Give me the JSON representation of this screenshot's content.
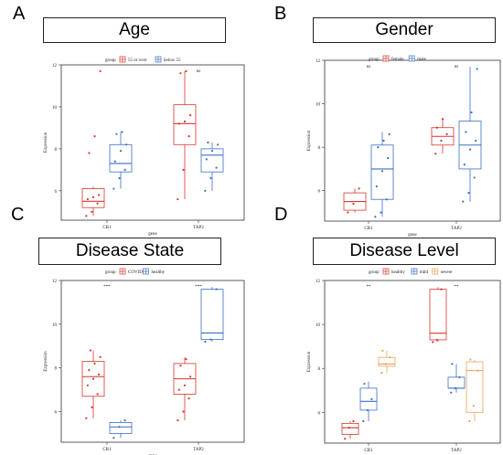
{
  "panels": [
    {
      "letter": "A",
      "title": "Age"
    },
    {
      "letter": "B",
      "title": "Gender"
    },
    {
      "letter": "C",
      "title": "Disease State"
    },
    {
      "letter": "D",
      "title": "Disease Level"
    }
  ],
  "chart_data": [
    {
      "type": "box",
      "title": "Age",
      "xlabel": "gene",
      "ylabel": "Expression",
      "ylim": [
        4.6,
        12
      ],
      "yticks": [
        6,
        8,
        10,
        12
      ],
      "legend_title": "group",
      "legend_position": "top",
      "categories": [
        "CR1",
        "TAP2"
      ],
      "significance": {
        "CR1": "",
        "TAP2": "ns"
      },
      "series": [
        {
          "name": "55 or over",
          "color": "#d7372d",
          "stats": [
            {
              "min": 4.8,
              "q1": 5.2,
              "median": 5.5,
              "q3": 6.1,
              "max": 6.2
            },
            {
              "min": 5.6,
              "q1": 8.2,
              "median": 9.2,
              "q3": 10.1,
              "max": 11.7
            }
          ],
          "points": [
            [
              4.8,
              5.0,
              5.4,
              5.6,
              5.7,
              5.8,
              7.8,
              8.6,
              11.7
            ],
            [
              5.6,
              7.0,
              8.6,
              9.2,
              9.3,
              9.6,
              11.6,
              11.7
            ]
          ]
        },
        {
          "name": "below 55",
          "color": "#3a6fc4",
          "stats": [
            {
              "min": 6.1,
              "q1": 6.9,
              "median": 7.3,
              "q3": 8.2,
              "max": 8.8
            },
            {
              "min": 6.0,
              "q1": 6.9,
              "median": 7.7,
              "q3": 8.0,
              "max": 8.3
            }
          ],
          "points": [
            [
              6.1,
              6.6,
              7.0,
              7.4,
              7.9,
              8.2,
              8.7,
              8.8
            ],
            [
              6.0,
              6.6,
              7.1,
              7.5,
              7.9,
              8.2,
              8.3
            ]
          ]
        }
      ]
    },
    {
      "type": "box",
      "title": "Gender",
      "xlabel": "gene",
      "ylabel": "Expression",
      "ylim": [
        4.6,
        12
      ],
      "yticks": [
        6,
        8,
        10,
        12
      ],
      "legend_title": "group",
      "legend_position": "top",
      "categories": [
        "CR1",
        "TAP2"
      ],
      "significance": {
        "CR1": "ns",
        "TAP2": "ns"
      },
      "series": [
        {
          "name": "female",
          "color": "#d7372d",
          "stats": [
            {
              "min": 5.0,
              "q1": 5.1,
              "median": 5.5,
              "q3": 5.9,
              "max": 6.1
            },
            {
              "min": 7.7,
              "q1": 8.1,
              "median": 8.5,
              "q3": 8.9,
              "max": 9.3
            }
          ],
          "points": [
            [
              5.0,
              5.4,
              6.1
            ],
            [
              7.7,
              8.3,
              8.6,
              8.9,
              9.3
            ]
          ]
        },
        {
          "name": "male",
          "color": "#3a6fc4",
          "stats": [
            {
              "min": 4.8,
              "q1": 5.6,
              "median": 7.0,
              "q3": 8.1,
              "max": 8.7
            },
            {
              "min": 5.5,
              "q1": 7.0,
              "median": 8.1,
              "q3": 9.2,
              "max": 11.7
            }
          ],
          "points": [
            [
              4.8,
              5.0,
              5.6,
              6.2,
              6.9,
              7.5,
              8.0,
              8.3,
              8.6
            ],
            [
              5.5,
              5.9,
              6.6,
              7.2,
              7.9,
              8.3,
              8.7,
              9.6,
              11.6
            ]
          ]
        }
      ]
    },
    {
      "type": "box",
      "title": "Disease State",
      "xlabel": "gene",
      "ylabel": "Expression",
      "ylim": [
        4.6,
        12
      ],
      "yticks": [
        6,
        8,
        10,
        12
      ],
      "legend_title": "group",
      "legend_position": "top",
      "categories": [
        "CR1",
        "TAP2"
      ],
      "significance": {
        "CR1": "***",
        "TAP2": "***"
      },
      "series": [
        {
          "name": "COVID",
          "color": "#d7372d",
          "stats": [
            {
              "min": 5.7,
              "q1": 6.7,
              "median": 7.6,
              "q3": 8.3,
              "max": 8.8
            },
            {
              "min": 5.6,
              "q1": 6.8,
              "median": 7.5,
              "q3": 8.2,
              "max": 8.5
            }
          ],
          "points": [
            [
              5.7,
              6.2,
              6.8,
              7.2,
              7.5,
              7.7,
              7.9,
              8.2,
              8.5,
              8.8
            ],
            [
              5.6,
              6.0,
              6.6,
              7.0,
              7.2,
              7.6,
              8.1,
              8.4
            ]
          ]
        },
        {
          "name": "healthy",
          "color": "#3a6fc4",
          "stats": [
            {
              "min": 4.8,
              "q1": 5.0,
              "median": 5.3,
              "q3": 5.5,
              "max": 5.6
            },
            {
              "min": 9.2,
              "q1": 9.3,
              "median": 9.6,
              "q3": 11.6,
              "max": 11.7
            }
          ],
          "points": [
            [
              4.8,
              5.3,
              5.6
            ],
            [
              9.2,
              9.3,
              11.6
            ]
          ]
        }
      ]
    },
    {
      "type": "box",
      "title": "Disease Level",
      "xlabel": "gene",
      "ylabel": "Expression",
      "ylim": [
        4.6,
        12
      ],
      "yticks": [
        6,
        8,
        10,
        12
      ],
      "legend_title": "group",
      "legend_position": "top",
      "categories": [
        "CR1",
        "TAP2"
      ],
      "significance": {
        "CR1": "**",
        "TAP2": "**"
      },
      "series": [
        {
          "name": "healthy",
          "color": "#d7372d",
          "stats": [
            {
              "min": 4.8,
              "q1": 5.0,
              "median": 5.3,
              "q3": 5.5,
              "max": 5.6
            },
            {
              "min": 9.2,
              "q1": 9.3,
              "median": 9.6,
              "q3": 11.6,
              "max": 11.7
            }
          ],
          "points": [
            [
              4.8,
              5.3,
              5.6
            ],
            [
              9.2,
              9.3,
              11.6
            ]
          ]
        },
        {
          "name": "mild",
          "color": "#3a6fc4",
          "stats": [
            {
              "min": 5.6,
              "q1": 6.1,
              "median": 6.5,
              "q3": 7.1,
              "max": 7.4
            },
            {
              "min": 6.9,
              "q1": 7.1,
              "median": 7.1,
              "q3": 7.6,
              "max": 8.2
            }
          ],
          "points": [
            [
              5.6,
              6.1,
              6.6,
              7.3
            ],
            [
              6.9,
              7.1,
              7.6,
              8.2
            ]
          ]
        },
        {
          "name": "severe",
          "color": "#f0a15a",
          "stats": [
            {
              "min": 7.8,
              "q1": 8.1,
              "median": 8.2,
              "q3": 8.5,
              "max": 8.8
            },
            {
              "min": 5.6,
              "q1": 6.0,
              "median": 7.9,
              "q3": 8.3,
              "max": 8.4
            }
          ],
          "points": [
            [
              7.8,
              8.2,
              8.5,
              8.8
            ],
            [
              5.6,
              6.3,
              7.9,
              8.4
            ]
          ]
        }
      ]
    }
  ]
}
